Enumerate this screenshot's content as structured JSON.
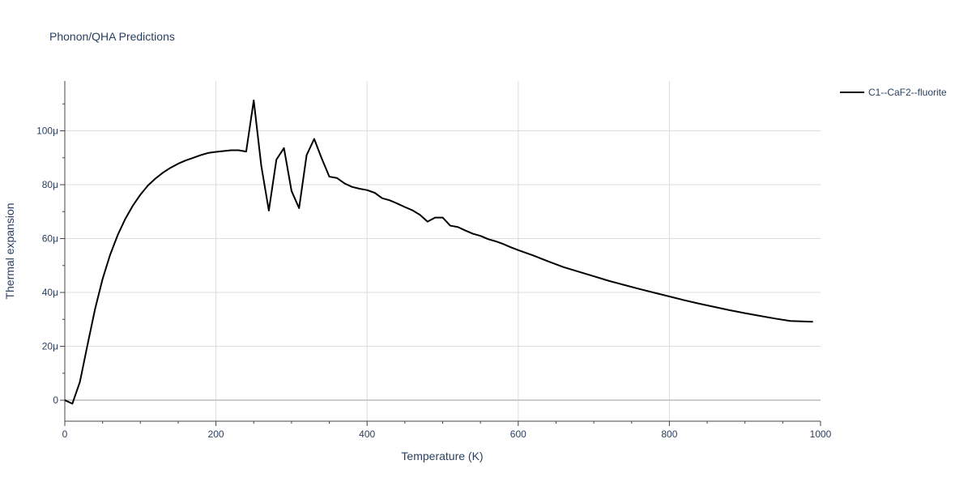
{
  "chart_data": {
    "type": "line",
    "title": "Phonon/QHA Predictions",
    "xlabel": "Temperature (K)",
    "ylabel": "Thermal expansion",
    "xlim": [
      0,
      1000
    ],
    "ylim": [
      -7.8e-06,
      0.0001185
    ],
    "x_ticks": [
      {
        "value": 0,
        "label": "0"
      },
      {
        "value": 200,
        "label": "200"
      },
      {
        "value": 400,
        "label": "400"
      },
      {
        "value": 600,
        "label": "600"
      },
      {
        "value": 800,
        "label": "800"
      },
      {
        "value": 1000,
        "label": "1000"
      }
    ],
    "y_ticks": [
      {
        "value": 0,
        "label": "0"
      },
      {
        "value": 2e-05,
        "label": "20μ"
      },
      {
        "value": 4e-05,
        "label": "40μ"
      },
      {
        "value": 6e-05,
        "label": "60μ"
      },
      {
        "value": 8e-05,
        "label": "80μ"
      },
      {
        "value": 0.0001,
        "label": "100μ"
      }
    ],
    "grid": true,
    "legend_position": "top-right",
    "series": [
      {
        "name": "C1--CaF2--fluorite",
        "color": "#000000",
        "x": [
          0,
          10,
          20,
          30,
          40,
          50,
          60,
          70,
          80,
          90,
          100,
          110,
          120,
          130,
          140,
          150,
          160,
          170,
          180,
          190,
          200,
          210,
          220,
          230,
          240,
          250,
          260,
          270,
          280,
          290,
          300,
          310,
          320,
          330,
          340,
          350,
          360,
          370,
          380,
          390,
          400,
          410,
          420,
          430,
          440,
          450,
          460,
          470,
          480,
          490,
          500,
          510,
          520,
          530,
          540,
          550,
          560,
          570,
          580,
          590,
          600,
          620,
          640,
          660,
          680,
          700,
          720,
          740,
          760,
          780,
          800,
          820,
          840,
          860,
          880,
          900,
          920,
          940,
          960,
          990
        ],
        "y": [
          0,
          -1.3e-06,
          6.8e-06,
          2.05e-05,
          3.38e-05,
          4.5e-05,
          5.4e-05,
          6.13e-05,
          6.73e-05,
          7.22e-05,
          7.63e-05,
          7.97e-05,
          8.23e-05,
          8.45e-05,
          8.63e-05,
          8.78e-05,
          8.9e-05,
          9e-05,
          9.1e-05,
          9.18e-05,
          9.22e-05,
          9.25e-05,
          9.28e-05,
          9.28e-05,
          9.23e-05,
          0.0001113,
          8.7e-05,
          7.04e-05,
          8.93e-05,
          9.36e-05,
          7.77e-05,
          7.13e-05,
          9.1e-05,
          9.7e-05,
          8.97e-05,
          8.3e-05,
          8.25e-05,
          8.05e-05,
          7.92e-05,
          7.85e-05,
          7.8e-05,
          7.7e-05,
          7.5e-05,
          7.42e-05,
          7.3e-05,
          7.17e-05,
          7.05e-05,
          6.88e-05,
          6.63e-05,
          6.78e-05,
          6.78e-05,
          6.48e-05,
          6.43e-05,
          6.3e-05,
          6.18e-05,
          6.1e-05,
          5.98e-05,
          5.9e-05,
          5.8e-05,
          5.68e-05,
          5.57e-05,
          5.37e-05,
          5.15e-05,
          4.94e-05,
          4.77e-05,
          4.6e-05,
          4.43e-05,
          4.28e-05,
          4.13e-05,
          3.99e-05,
          3.85e-05,
          3.71e-05,
          3.58e-05,
          3.46e-05,
          3.34e-05,
          3.23e-05,
          3.13e-05,
          3.03e-05,
          2.94e-05,
          2.91e-05
        ]
      }
    ]
  }
}
